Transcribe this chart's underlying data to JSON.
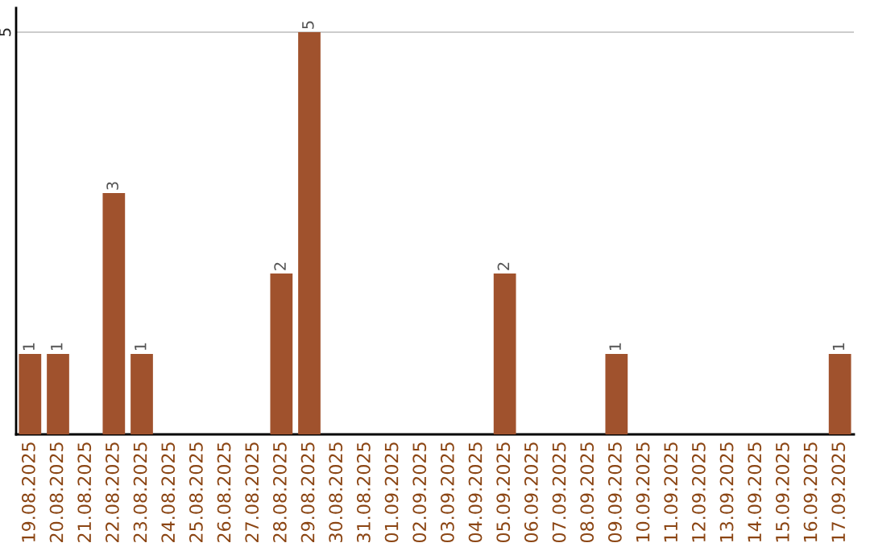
{
  "chart_data": {
    "type": "bar",
    "categories": [
      "19.08.2025",
      "20.08.2025",
      "21.08.2025",
      "22.08.2025",
      "23.08.2025",
      "24.08.2025",
      "25.08.2025",
      "26.08.2025",
      "27.08.2025",
      "28.08.2025",
      "29.08.2025",
      "30.08.2025",
      "31.08.2025",
      "01.09.2025",
      "02.09.2025",
      "03.09.2025",
      "04.09.2025",
      "05.09.2025",
      "06.09.2025",
      "07.09.2025",
      "08.09.2025",
      "09.09.2025",
      "10.09.2025",
      "11.09.2025",
      "12.09.2025",
      "13.09.2025",
      "14.09.2025",
      "15.09.2025",
      "16.09.2025",
      "17.09.2025"
    ],
    "values": [
      1,
      1,
      0,
      3,
      1,
      0,
      0,
      0,
      0,
      2,
      5,
      0,
      0,
      0,
      0,
      0,
      0,
      2,
      0,
      0,
      0,
      1,
      0,
      0,
      0,
      0,
      0,
      0,
      0,
      1
    ],
    "value_labels": [
      "1",
      "1",
      null,
      "3",
      "1",
      null,
      null,
      null,
      null,
      "2",
      "5",
      null,
      null,
      null,
      null,
      null,
      null,
      "2",
      null,
      null,
      null,
      "1",
      null,
      null,
      null,
      null,
      null,
      null,
      null,
      "1"
    ],
    "color": "#a0522d",
    "ylim": [
      0,
      5.3
    ],
    "yticks": [
      5
    ],
    "grid": "y"
  }
}
